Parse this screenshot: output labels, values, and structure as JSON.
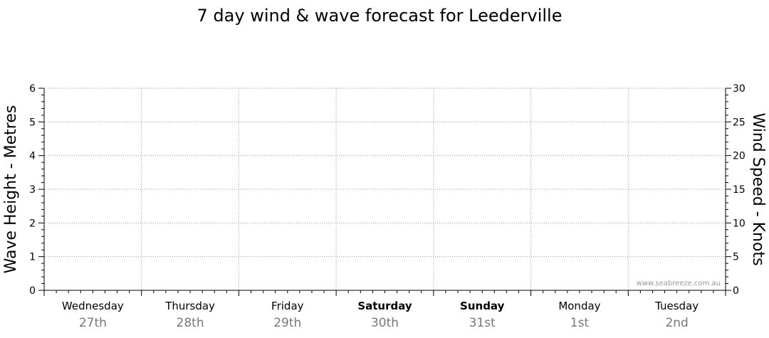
{
  "chart_data": {
    "type": "line",
    "title": "7 day wind & wave forecast for Leederville",
    "ylabel_left": "Wave Height - Metres",
    "ylabel_right": "Wind Speed - Knots",
    "ylim_left": [
      0,
      6
    ],
    "ylim_right": [
      0,
      30
    ],
    "yticks_left": [
      "0",
      "1",
      "2",
      "3",
      "4",
      "5",
      "6"
    ],
    "yticks_right": [
      "0",
      "5",
      "10",
      "15",
      "20",
      "25",
      "30"
    ],
    "grid": true,
    "days": [
      {
        "day": "Wednesday",
        "date": "27th",
        "bold": false
      },
      {
        "day": "Thursday",
        "date": "28th",
        "bold": false
      },
      {
        "day": "Friday",
        "date": "29th",
        "bold": false
      },
      {
        "day": "Saturday",
        "date": "30th",
        "bold": true
      },
      {
        "day": "Sunday",
        "date": "31st",
        "bold": true
      },
      {
        "day": "Monday",
        "date": "1st",
        "bold": false
      },
      {
        "day": "Tuesday",
        "date": "2nd",
        "bold": false
      }
    ],
    "series": []
  },
  "credit": "www.seabreeze.com.au"
}
